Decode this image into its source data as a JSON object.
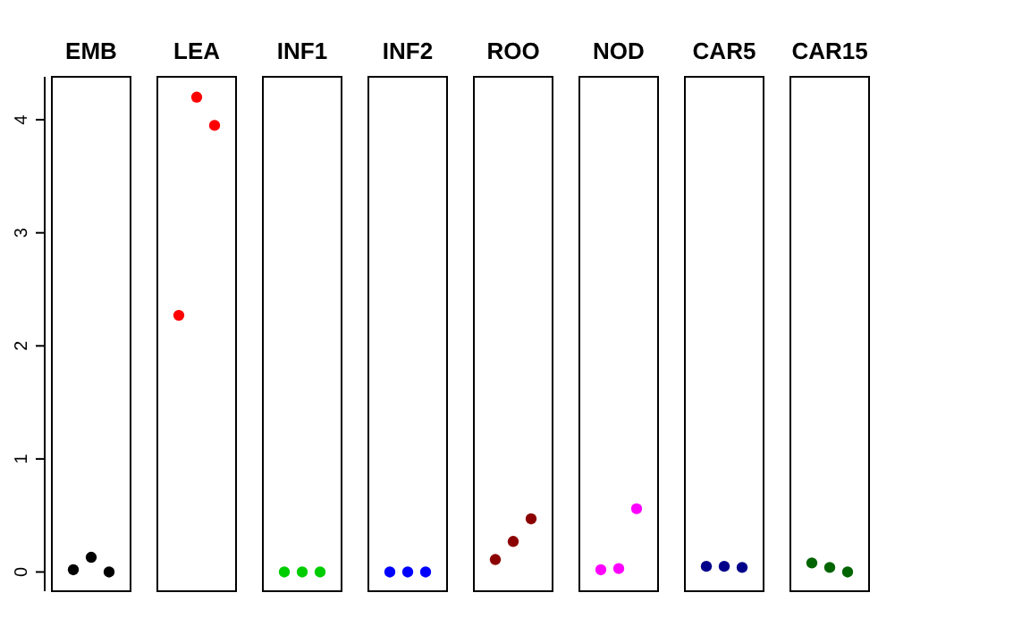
{
  "chart_data": {
    "type": "scatter",
    "categories": [
      "EMB",
      "LEA",
      "INF1",
      "INF2",
      "ROO",
      "NOD",
      "CAR5",
      "CAR15"
    ],
    "series": [
      {
        "values": [
          0.02,
          2.27,
          0.0,
          0.0,
          0.11,
          0.02,
          0.05,
          0.08
        ],
        "colors": [
          "#000000",
          "#ff0000",
          "#00cd00",
          "#0000ff",
          "#8b0000",
          "#ff00ff",
          "#00008b",
          "#006400"
        ]
      },
      {
        "values": [
          0.13,
          4.2,
          0.0,
          0.0,
          0.27,
          0.03,
          0.05,
          0.04
        ],
        "colors": [
          "#000000",
          "#ff0000",
          "#00cd00",
          "#0000ff",
          "#8b0000",
          "#ff00ff",
          "#00008b",
          "#006400"
        ]
      },
      {
        "values": [
          0.0,
          3.95,
          0.0,
          0.0,
          0.47,
          0.56,
          0.04,
          0.0
        ],
        "colors": [
          "#000000",
          "#ff0000",
          "#00cd00",
          "#0000ff",
          "#8b0000",
          "#ff00ff",
          "#00008b",
          "#006400"
        ]
      }
    ],
    "ylim": [
      -0.17,
      4.38
    ],
    "yticks": [
      0,
      1,
      2,
      3,
      4
    ],
    "marker": "circle"
  }
}
